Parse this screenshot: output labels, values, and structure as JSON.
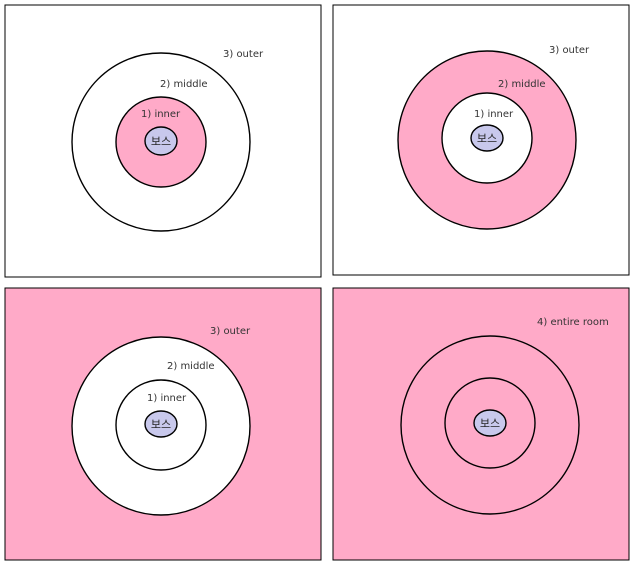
{
  "colors": {
    "zone_fill": "#ffaac8",
    "empty_fill": "#ffffff",
    "boss_fill": "#c8c8ec",
    "stroke": "#000000"
  },
  "boss_label": "보스",
  "panels": [
    {
      "id": "panel-1",
      "highlight": "inner",
      "labels": {
        "outer": "3) outer",
        "middle": "2) middle",
        "inner": "1) inner"
      }
    },
    {
      "id": "panel-2",
      "highlight": "middle",
      "labels": {
        "outer": "3) outer",
        "middle": "2) middle",
        "inner": "1) inner"
      }
    },
    {
      "id": "panel-3",
      "highlight": "outer",
      "labels": {
        "outer": "3) outer",
        "middle": "2) middle",
        "inner": "1) inner"
      }
    },
    {
      "id": "panel-4",
      "highlight": "room",
      "labels": {
        "room": "4) entire room"
      }
    }
  ]
}
